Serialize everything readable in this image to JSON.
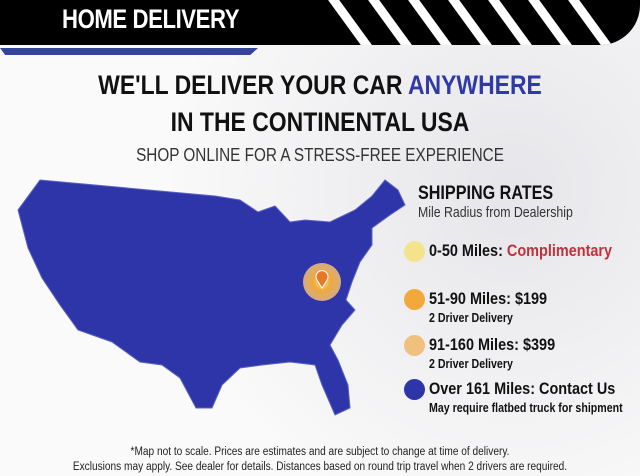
{
  "header": {
    "title": "HOME DELIVERY"
  },
  "headline": {
    "line1_prefix": "WE'LL DELIVER YOUR CAR ",
    "line1_accent": "ANYWHERE",
    "line2": "IN THE CONTINENTAL USA",
    "subtitle": "SHOP ONLINE FOR A STRESS-FREE EXPERIENCE"
  },
  "shipping": {
    "title": "SHIPPING RATES",
    "subtitle": "Mile Radius from Dealership",
    "items": [
      {
        "label": "0-50 Miles: ",
        "value": "Complimentary",
        "note": "",
        "color": "#f3e38d"
      },
      {
        "label": "51-90 Miles: $199",
        "value": "",
        "note": "2 Driver Delivery",
        "color": "#f0a93a"
      },
      {
        "label": "91-160 Miles: $399",
        "value": "",
        "note": "2 Driver Delivery",
        "color": "#efc07e"
      },
      {
        "label": "Over 161 Miles: Contact Us",
        "value": "",
        "note": "May require flatbed truck for shipment",
        "color": "#2e35a8"
      }
    ]
  },
  "map": {
    "fill": "#2e35a8",
    "icon": "location-pin-icon"
  },
  "footer": {
    "line1": "*Map not to scale. Prices are estimates and are subject to change at time of delivery.",
    "line2": "Exclusions may apply. See dealer for details. Distances based on round trip travel when 2 drivers are required."
  }
}
